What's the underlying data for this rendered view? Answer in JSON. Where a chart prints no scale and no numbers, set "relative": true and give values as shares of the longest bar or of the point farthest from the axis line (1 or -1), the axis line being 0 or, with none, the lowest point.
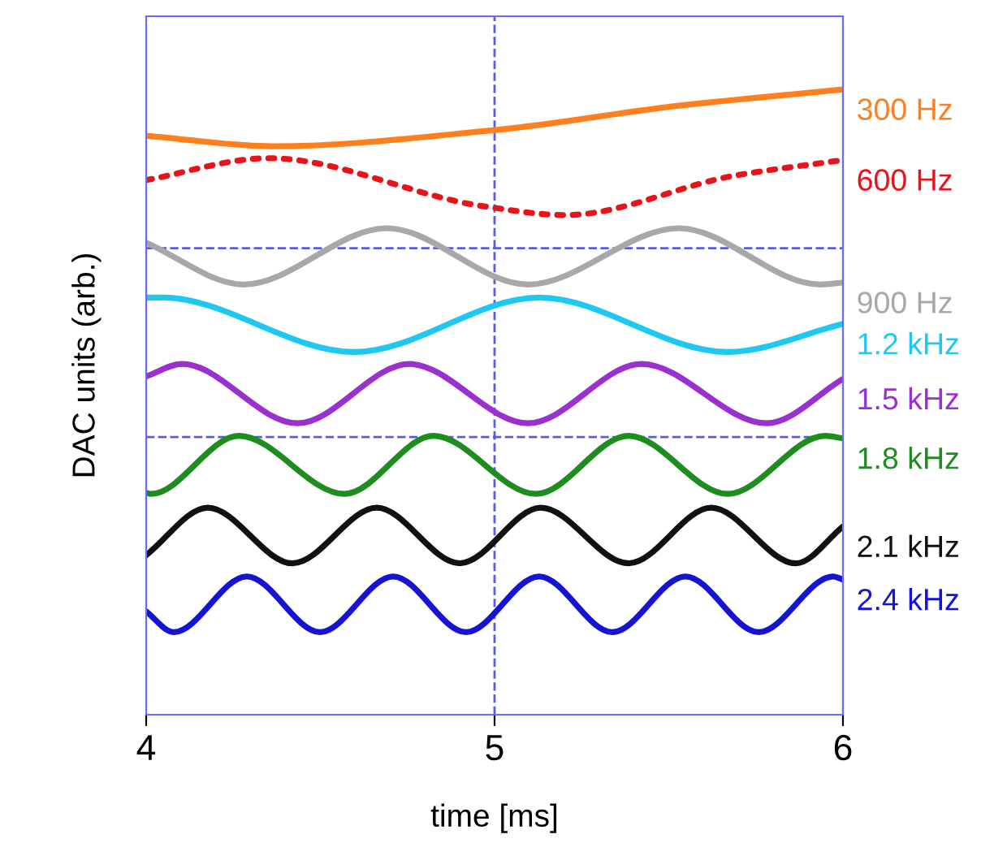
{
  "chart_data": {
    "type": "line",
    "xlabel": "time [ms]",
    "ylabel": "DAC units (arb.)",
    "relative": true,
    "xlim": [
      4,
      6
    ],
    "xticks": [
      4,
      5,
      6
    ],
    "tick_labels": "x",
    "grid": false,
    "legend": false,
    "ref_lines": [
      {
        "axis": "x",
        "value": 5,
        "color": "#5b5bdc",
        "line_style": "dashed"
      },
      {
        "axis": "y",
        "value": 0.746,
        "color": "#5b5bdc",
        "line_style": "dashed"
      },
      {
        "axis": "y",
        "value": 0.444,
        "color": "#5b5bdc",
        "line_style": "dashed"
      }
    ],
    "series": [
      {
        "name": "300 Hz",
        "color": "#ff7f1e",
        "x": [
          4.0,
          4.364,
          5.002,
          5.529,
          6.0
        ],
        "values": [
          0.926,
          0.909,
          0.935,
          0.974,
          1.0
        ]
      },
      {
        "name": "600 Hz",
        "color": "#e8141c",
        "line_style": "dotted",
        "x": [
          4.0,
          4.35,
          4.97,
          5.203,
          5.688,
          6.0
        ],
        "values": [
          0.855,
          0.89,
          0.813,
          0.799,
          0.862,
          0.887
        ]
      },
      {
        "name": "900 Hz",
        "color": "#a8a8a8",
        "x": [
          4.0,
          4.28,
          4.69,
          5.096,
          5.529,
          5.935,
          6.0
        ],
        "values": [
          0.755,
          0.688,
          0.778,
          0.688,
          0.778,
          0.688,
          0.691
        ]
      },
      {
        "name": "1.2 kHz",
        "color": "#1ec8f0",
        "x": [
          4.0,
          4.047,
          4.597,
          5.128,
          5.669,
          6.0
        ],
        "values": [
          0.667,
          0.667,
          0.58,
          0.667,
          0.58,
          0.625
        ]
      },
      {
        "name": "1.5 kHz",
        "color": "#9b30d0",
        "x": [
          4.0,
          4.103,
          4.434,
          4.755,
          5.096,
          5.422,
          5.781,
          6.0
        ],
        "values": [
          0.541,
          0.561,
          0.466,
          0.561,
          0.466,
          0.561,
          0.466,
          0.537
        ]
      },
      {
        "name": "1.8 kHz",
        "color": "#1e8c1e",
        "x": [
          4.0,
          4.014,
          4.266,
          4.569,
          4.825,
          5.119,
          5.385,
          5.669,
          5.949,
          6.0
        ],
        "values": [
          0.355,
          0.353,
          0.446,
          0.353,
          0.446,
          0.353,
          0.446,
          0.353,
          0.446,
          0.442
        ]
      },
      {
        "name": "2.1 kHz",
        "color": "#111111",
        "x": [
          4.0,
          4.177,
          4.42,
          4.662,
          4.9,
          5.133,
          5.385,
          5.622,
          5.865,
          6.0
        ],
        "values": [
          0.255,
          0.331,
          0.242,
          0.331,
          0.242,
          0.331,
          0.242,
          0.331,
          0.242,
          0.301
        ]
      },
      {
        "name": "2.4 kHz",
        "color": "#1414d2",
        "x": [
          4.0,
          4.079,
          4.289,
          4.499,
          4.709,
          4.918,
          5.128,
          5.338,
          5.548,
          5.758,
          5.972,
          6.0
        ],
        "values": [
          0.165,
          0.132,
          0.221,
          0.132,
          0.221,
          0.132,
          0.221,
          0.132,
          0.221,
          0.132,
          0.221,
          0.216
        ]
      }
    ]
  }
}
